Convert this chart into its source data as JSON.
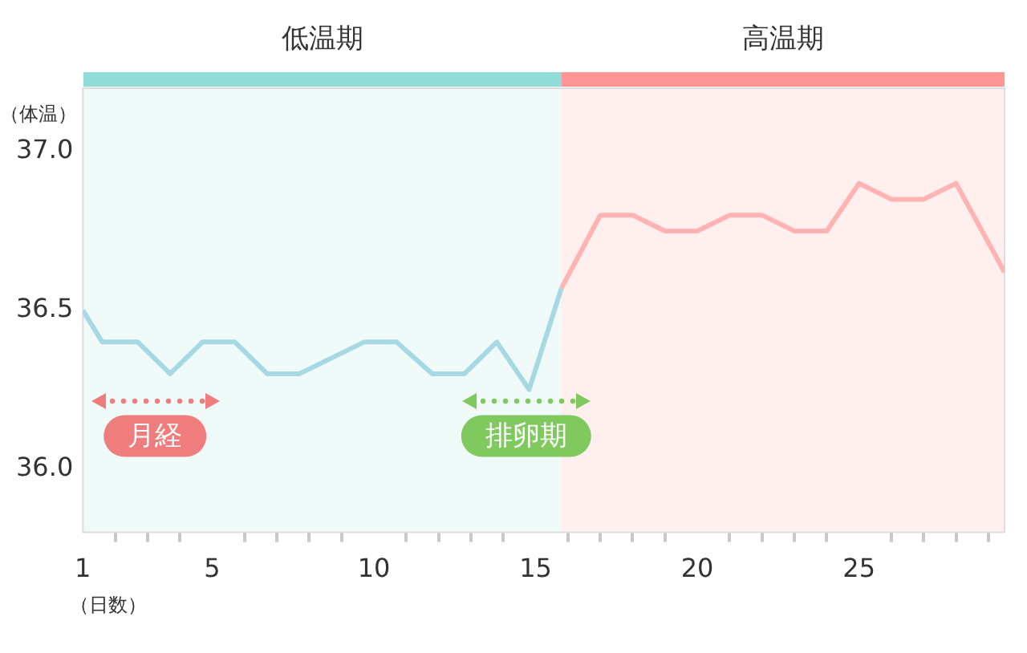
{
  "chart_data": {
    "type": "line",
    "xlabel": "（日数）",
    "ylabel": "（体温）",
    "xlim": [
      1,
      29.5
    ],
    "ylim": [
      35.8,
      37.2
    ],
    "xticks": [
      1,
      {
        "value": 2,
        "label": null
      },
      {
        "value": 3,
        "label": null
      },
      {
        "value": 4,
        "label": null
      },
      5,
      {
        "value": 6,
        "label": null
      },
      {
        "value": 7,
        "label": null
      },
      {
        "value": 8,
        "label": null
      },
      {
        "value": 9,
        "label": null
      },
      10,
      {
        "value": 11,
        "label": null
      },
      {
        "value": 12,
        "label": null
      },
      {
        "value": 13,
        "label": null
      },
      {
        "value": 14,
        "label": null
      },
      15,
      {
        "value": 16,
        "label": null
      },
      {
        "value": 17,
        "label": null
      },
      {
        "value": 18,
        "label": null
      },
      {
        "value": 19,
        "label": null
      },
      20,
      {
        "value": 21,
        "label": null
      },
      {
        "value": 22,
        "label": null
      },
      {
        "value": 23,
        "label": null
      },
      {
        "value": 24,
        "label": null
      },
      25,
      {
        "value": 26,
        "label": null
      },
      {
        "value": 27,
        "label": null
      },
      {
        "value": 28,
        "label": null
      },
      {
        "value": 29,
        "label": null
      }
    ],
    "yticks": [
      {
        "value": 36,
        "label": "36.0"
      },
      {
        "value": 36.5,
        "label": "36.5"
      },
      {
        "value": 37,
        "label": "37.0"
      }
    ],
    "series": [
      {
        "color": "#a6d9e4",
        "x": [
          1,
          1.6,
          2.7,
          3.7,
          4.7,
          5.7,
          6.7,
          7.7,
          8.7,
          9.7,
          10.7,
          11.8,
          12.8,
          13.8,
          14.8,
          15.8
        ],
        "values": [
          36.5,
          36.4,
          36.4,
          36.3,
          36.4,
          36.4,
          36.3,
          36.3,
          36.35,
          36.4,
          36.4,
          36.3,
          36.3,
          36.4,
          36.25,
          36.57
        ]
      },
      {
        "color": "#ffb3b3",
        "x": [
          15.8,
          17,
          18,
          19,
          20,
          21,
          22,
          23,
          24,
          25,
          26,
          27,
          28,
          29.5
        ],
        "values": [
          36.57,
          36.8,
          36.8,
          36.75,
          36.75,
          36.8,
          36.8,
          36.75,
          36.75,
          36.9,
          36.85,
          36.85,
          36.9,
          36.62
        ]
      }
    ],
    "bands": [
      {
        "axis": "x",
        "from": 1,
        "to": 15.8,
        "label": "低温期",
        "color": "#92dcd8"
      },
      {
        "axis": "x",
        "from": 15.8,
        "to": 29.5,
        "label": "高温期",
        "color": "#ff9595"
      }
    ],
    "annotations": [
      "月経",
      "排卵期"
    ],
    "grid": false,
    "legend": false,
    "marker": "none",
    "line_style": "solid"
  }
}
